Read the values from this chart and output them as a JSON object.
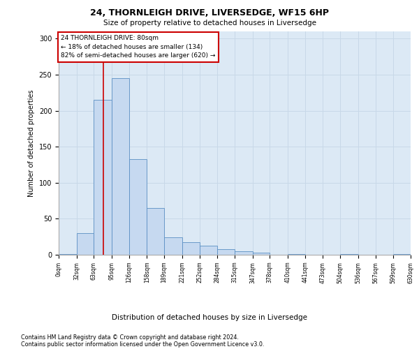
{
  "title1": "24, THORNLEIGH DRIVE, LIVERSEDGE, WF15 6HP",
  "title2": "Size of property relative to detached houses in Liversedge",
  "xlabel": "Distribution of detached houses by size in Liversedge",
  "ylabel": "Number of detached properties",
  "property_size": 80,
  "bin_edges": [
    0,
    32,
    63,
    95,
    126,
    158,
    189,
    221,
    252,
    284,
    315,
    347,
    378,
    410,
    441,
    473,
    504,
    536,
    567,
    599,
    630
  ],
  "bar_values": [
    1,
    30,
    215,
    245,
    133,
    65,
    24,
    17,
    13,
    8,
    5,
    3,
    0,
    1,
    0,
    0,
    1,
    0,
    0,
    1
  ],
  "bar_color": "#c6d9f0",
  "bar_edge_color": "#5a8fc3",
  "vline_x": 80,
  "vline_color": "#cc0000",
  "annotation_text": "24 THORNLEIGH DRIVE: 80sqm\n← 18% of detached houses are smaller (134)\n82% of semi-detached houses are larger (620) →",
  "annotation_box_color": "white",
  "annotation_box_edgecolor": "#cc0000",
  "grid_color": "#c8d8e8",
  "background_color": "#dce9f5",
  "footnote1": "Contains HM Land Registry data © Crown copyright and database right 2024.",
  "footnote2": "Contains public sector information licensed under the Open Government Licence v3.0.",
  "tick_labels": [
    "0sqm",
    "32sqm",
    "63sqm",
    "95sqm",
    "126sqm",
    "158sqm",
    "189sqm",
    "221sqm",
    "252sqm",
    "284sqm",
    "315sqm",
    "347sqm",
    "378sqm",
    "410sqm",
    "441sqm",
    "473sqm",
    "504sqm",
    "536sqm",
    "567sqm",
    "599sqm",
    "630sqm"
  ],
  "yticks": [
    0,
    50,
    100,
    150,
    200,
    250,
    300
  ],
  "ylim": [
    0,
    310
  ],
  "xlim": [
    0,
    630
  ]
}
